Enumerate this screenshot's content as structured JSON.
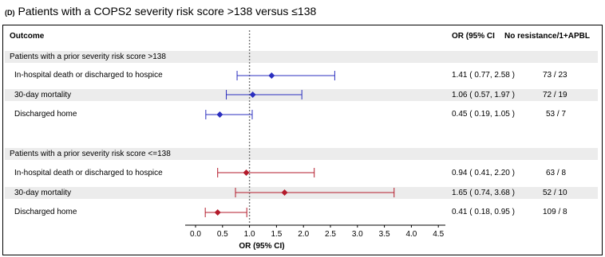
{
  "heading": {
    "tag": "(D)",
    "title": "Patients with a COPS2 severity risk score >138 versus ≤138"
  },
  "columns": {
    "outcome": "Outcome",
    "or": "OR (95% CI",
    "counts": "No resistance/1+APBL"
  },
  "groups": [
    {
      "label": "Patients with a prior severity risk score >138"
    },
    {
      "label": "Patients with a prior severity risk score <=138"
    }
  ],
  "colors": {
    "group1": "#2b2fbf",
    "group2": "#b31b2b",
    "refline": "#777777",
    "band": "#ececec"
  },
  "chart_data": {
    "type": "forest",
    "xlabel": "OR (95% CI)",
    "xlim": [
      0,
      4.5
    ],
    "xticks": [
      "0.0",
      "0.5",
      "1.0",
      "1.5",
      "2.0",
      "2.5",
      "3.0",
      "3.5",
      "4.0",
      "4.5"
    ],
    "reference_line": 1.0,
    "rows": [
      {
        "group": 0,
        "outcome": "In-hospital death or discharged to hospice",
        "or": 1.41,
        "lo": 0.77,
        "hi": 2.58,
        "or_text": "1.41 ( 0.77,  2.58 )",
        "counts": "73 / 23"
      },
      {
        "group": 0,
        "outcome": "30-day mortality",
        "or": 1.06,
        "lo": 0.57,
        "hi": 1.97,
        "or_text": "1.06 ( 0.57,  1.97 )",
        "counts": "72 / 19"
      },
      {
        "group": 0,
        "outcome": "Discharged home",
        "or": 0.45,
        "lo": 0.19,
        "hi": 1.05,
        "or_text": "0.45 ( 0.19,  1.05 )",
        "counts": "53 / 7"
      },
      {
        "group": 1,
        "outcome": "In-hospital death or discharged to hospice",
        "or": 0.94,
        "lo": 0.41,
        "hi": 2.2,
        "or_text": "0.94 ( 0.41,  2.20 )",
        "counts": "63 / 8"
      },
      {
        "group": 1,
        "outcome": "30-day mortality",
        "or": 1.65,
        "lo": 0.74,
        "hi": 3.68,
        "or_text": "1.65 ( 0.74,  3.68 )",
        "counts": "52 / 10"
      },
      {
        "group": 1,
        "outcome": "Discharged home",
        "or": 0.41,
        "lo": 0.18,
        "hi": 0.95,
        "or_text": "0.41 ( 0.18,  0.95 )",
        "counts": "109 / 8"
      }
    ]
  }
}
